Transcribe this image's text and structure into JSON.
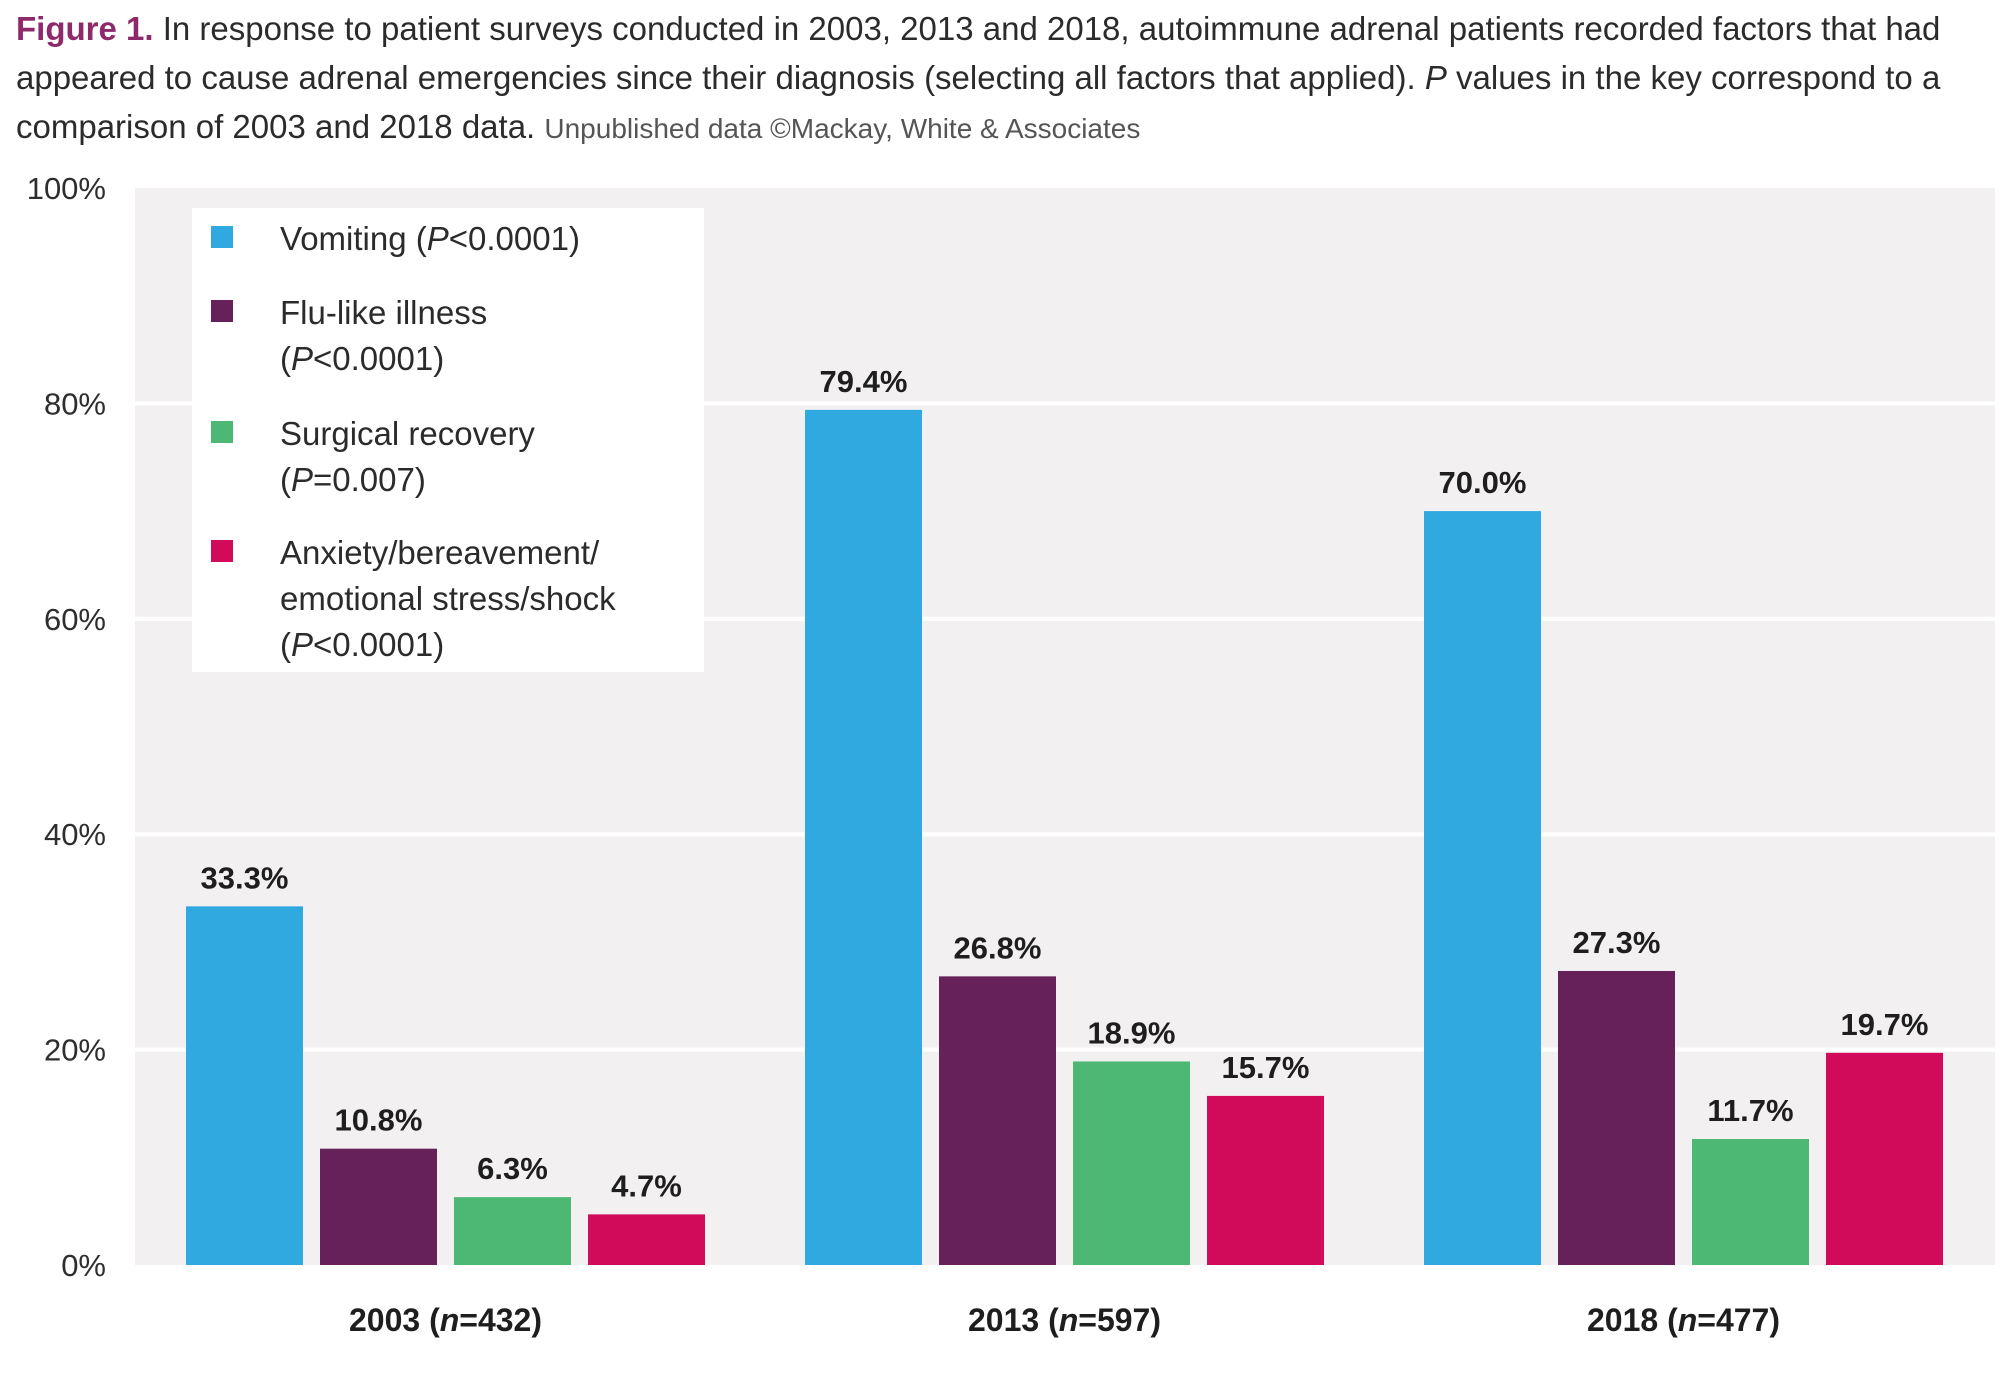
{
  "caption": {
    "label": "Figure 1.",
    "text": "In response to patient surveys conducted in 2003, 2013 and 2018, autoimmune adrenal patients recorded factors that had appeared to cause adrenal emergencies since their diagnosis (selecting all factors that applied).",
    "p_italic": "P",
    "p_text": "values in the key correspond to a comparison of 2003 and 2018 data.",
    "source": "Unpublished data ©Mackay, White & Associates"
  },
  "colors": {
    "plot_background": "#f3f0f1",
    "gridline": "#ffffff"
  },
  "chart_data": {
    "type": "bar",
    "ylim": [
      0,
      100
    ],
    "y_ticks": [
      "0%",
      "20%",
      "40%",
      "60%",
      "80%",
      "100%"
    ],
    "grid": true,
    "legend_placement": "top-left",
    "categories": [
      {
        "year": "2003",
        "n_prefix": "(",
        "n_italic": "n",
        "n_value": "=432)"
      },
      {
        "year": "2013",
        "n_prefix": "(",
        "n_italic": "n",
        "n_value": "=597)"
      },
      {
        "year": "2018",
        "n_prefix": "(",
        "n_italic": "n",
        "n_value": "=477)"
      }
    ],
    "series": [
      {
        "name": "Vomiting",
        "p": "<0.0001",
        "color": "#2fa9e0",
        "values": [
          33.3,
          79.4,
          70.0
        ],
        "labels": [
          "33.3%",
          "79.4%",
          "70.0%"
        ]
      },
      {
        "name": "Flu-like illness",
        "p": "<0.0001",
        "color": "#66215a",
        "values": [
          10.8,
          26.8,
          27.3
        ],
        "labels": [
          "10.8%",
          "26.8%",
          "27.3%"
        ]
      },
      {
        "name": "Surgical recovery",
        "p": "=0.007",
        "color": "#4db874",
        "values": [
          6.3,
          18.9,
          11.7
        ],
        "labels": [
          "6.3%",
          "18.9%",
          "11.7%"
        ]
      },
      {
        "name": "Anxiety/bereavement/ emotional stress/shock",
        "p": "<0.0001",
        "color": "#d10a5a",
        "values": [
          4.7,
          15.7,
          19.7
        ],
        "labels": [
          "4.7%",
          "15.7%",
          "19.7%"
        ]
      }
    ],
    "legend_lines": [
      [
        [
          {
            "t": "Vomiting ("
          },
          {
            "t": "P",
            "i": true
          },
          {
            "t": "<0.0001)"
          }
        ]
      ],
      [
        [
          {
            "t": "Flu-like illness"
          }
        ],
        [
          {
            "t": "("
          },
          {
            "t": "P",
            "i": true
          },
          {
            "t": "<0.0001)"
          }
        ]
      ],
      [
        [
          {
            "t": "Surgical recovery"
          }
        ],
        [
          {
            "t": "("
          },
          {
            "t": "P",
            "i": true
          },
          {
            "t": "=0.007)"
          }
        ]
      ],
      [
        [
          {
            "t": "Anxiety/bereavement/"
          }
        ],
        [
          {
            "t": "emotional stress/shock"
          }
        ],
        [
          {
            "t": "("
          },
          {
            "t": "P",
            "i": true
          },
          {
            "t": "<0.0001)"
          }
        ]
      ]
    ]
  }
}
